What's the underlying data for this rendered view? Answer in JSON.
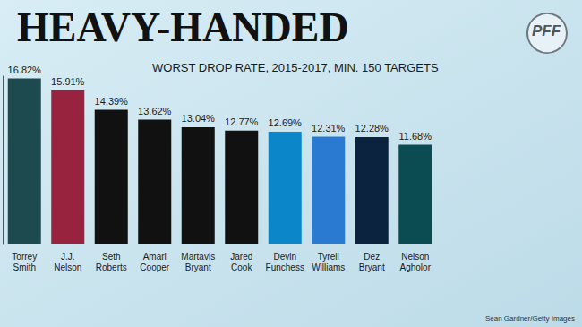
{
  "chart_data": {
    "type": "bar",
    "title": "HEAVY-HANDED",
    "subtitle": "WORST DROP RATE, 2015-2017, MIN. 150 TARGETS",
    "categories": [
      "Torrey Smith",
      "J.J. Nelson",
      "Seth Roberts",
      "Amari Cooper",
      "Martavis Bryant",
      "Jared Cook",
      "Devin Funchess",
      "Tyrell Williams",
      "Dez Bryant",
      "Nelson Agholor"
    ],
    "values": [
      16.82,
      15.91,
      14.39,
      13.62,
      13.04,
      12.77,
      12.69,
      12.31,
      12.28,
      11.68
    ],
    "value_labels": [
      "16.82%",
      "15.91%",
      "14.39%",
      "13.62%",
      "13.04%",
      "12.77%",
      "12.69%",
      "12.31%",
      "12.28%",
      "11.68%"
    ],
    "colors": [
      "#1d4a4e",
      "#97233f",
      "#111111",
      "#111111",
      "#111111",
      "#111111",
      "#0a86c9",
      "#2a7ad2",
      "#0c2340",
      "#0b4c52"
    ],
    "ylim": [
      4,
      17
    ],
    "grid": false,
    "data_labels": true,
    "tick_labels": "x",
    "logo": "PFF",
    "credit": "Sean Gardner/Getty Images"
  }
}
